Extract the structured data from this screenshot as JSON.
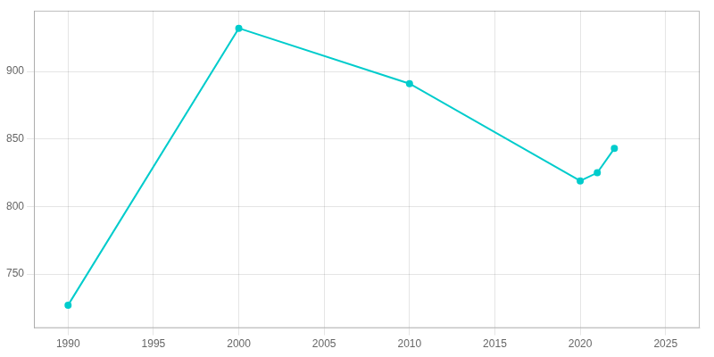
{
  "chart_data": {
    "type": "line",
    "x": [
      1990,
      2000,
      2010,
      2020,
      2021,
      2022
    ],
    "values": [
      727,
      932,
      891,
      819,
      825,
      843
    ],
    "color": "#00CCCC",
    "marker": "circle",
    "xlim": [
      1988,
      2027
    ],
    "ylim": [
      710,
      945
    ],
    "xticks": [
      1990,
      1995,
      2000,
      2005,
      2010,
      2015,
      2020,
      2025
    ],
    "yticks": [
      750,
      800,
      850,
      900
    ],
    "grid": true
  }
}
